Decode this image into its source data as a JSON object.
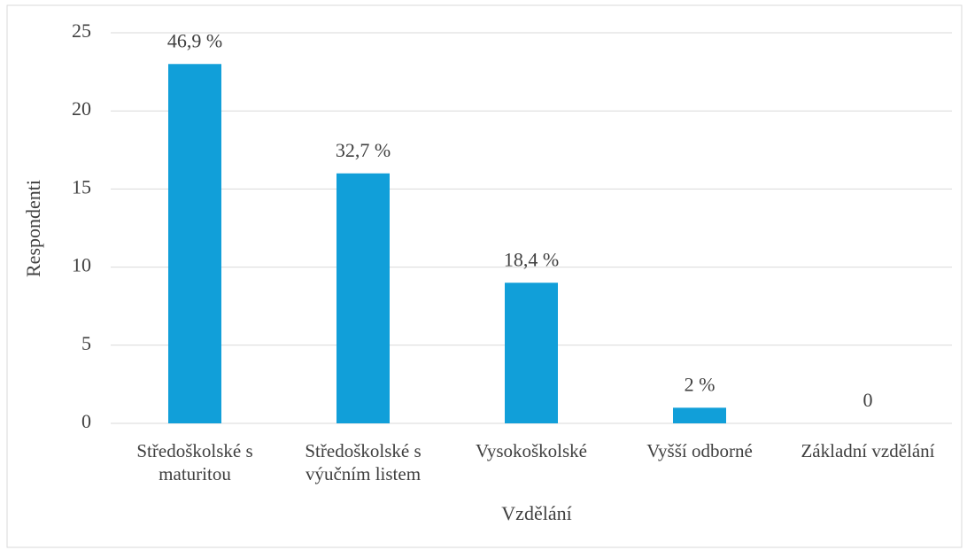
{
  "chart_data": {
    "type": "bar",
    "x_label": "Vzdělání",
    "y_label": "Respondenti",
    "categories": [
      "Středoškolské s maturitou",
      "Středoškolské s výučním listem",
      "Vysokoškolské",
      "Vyšší odborné",
      "Základní vzdělání"
    ],
    "values": [
      23,
      16,
      9,
      1,
      0
    ],
    "annotations": [
      "46,9 %",
      "32,7 %",
      "18,4 %",
      "2 %",
      "0"
    ],
    "color": "#119fd9",
    "ylim": [
      0,
      25
    ],
    "yticks": [
      0,
      5,
      10,
      15,
      20,
      25
    ],
    "grid": true
  }
}
